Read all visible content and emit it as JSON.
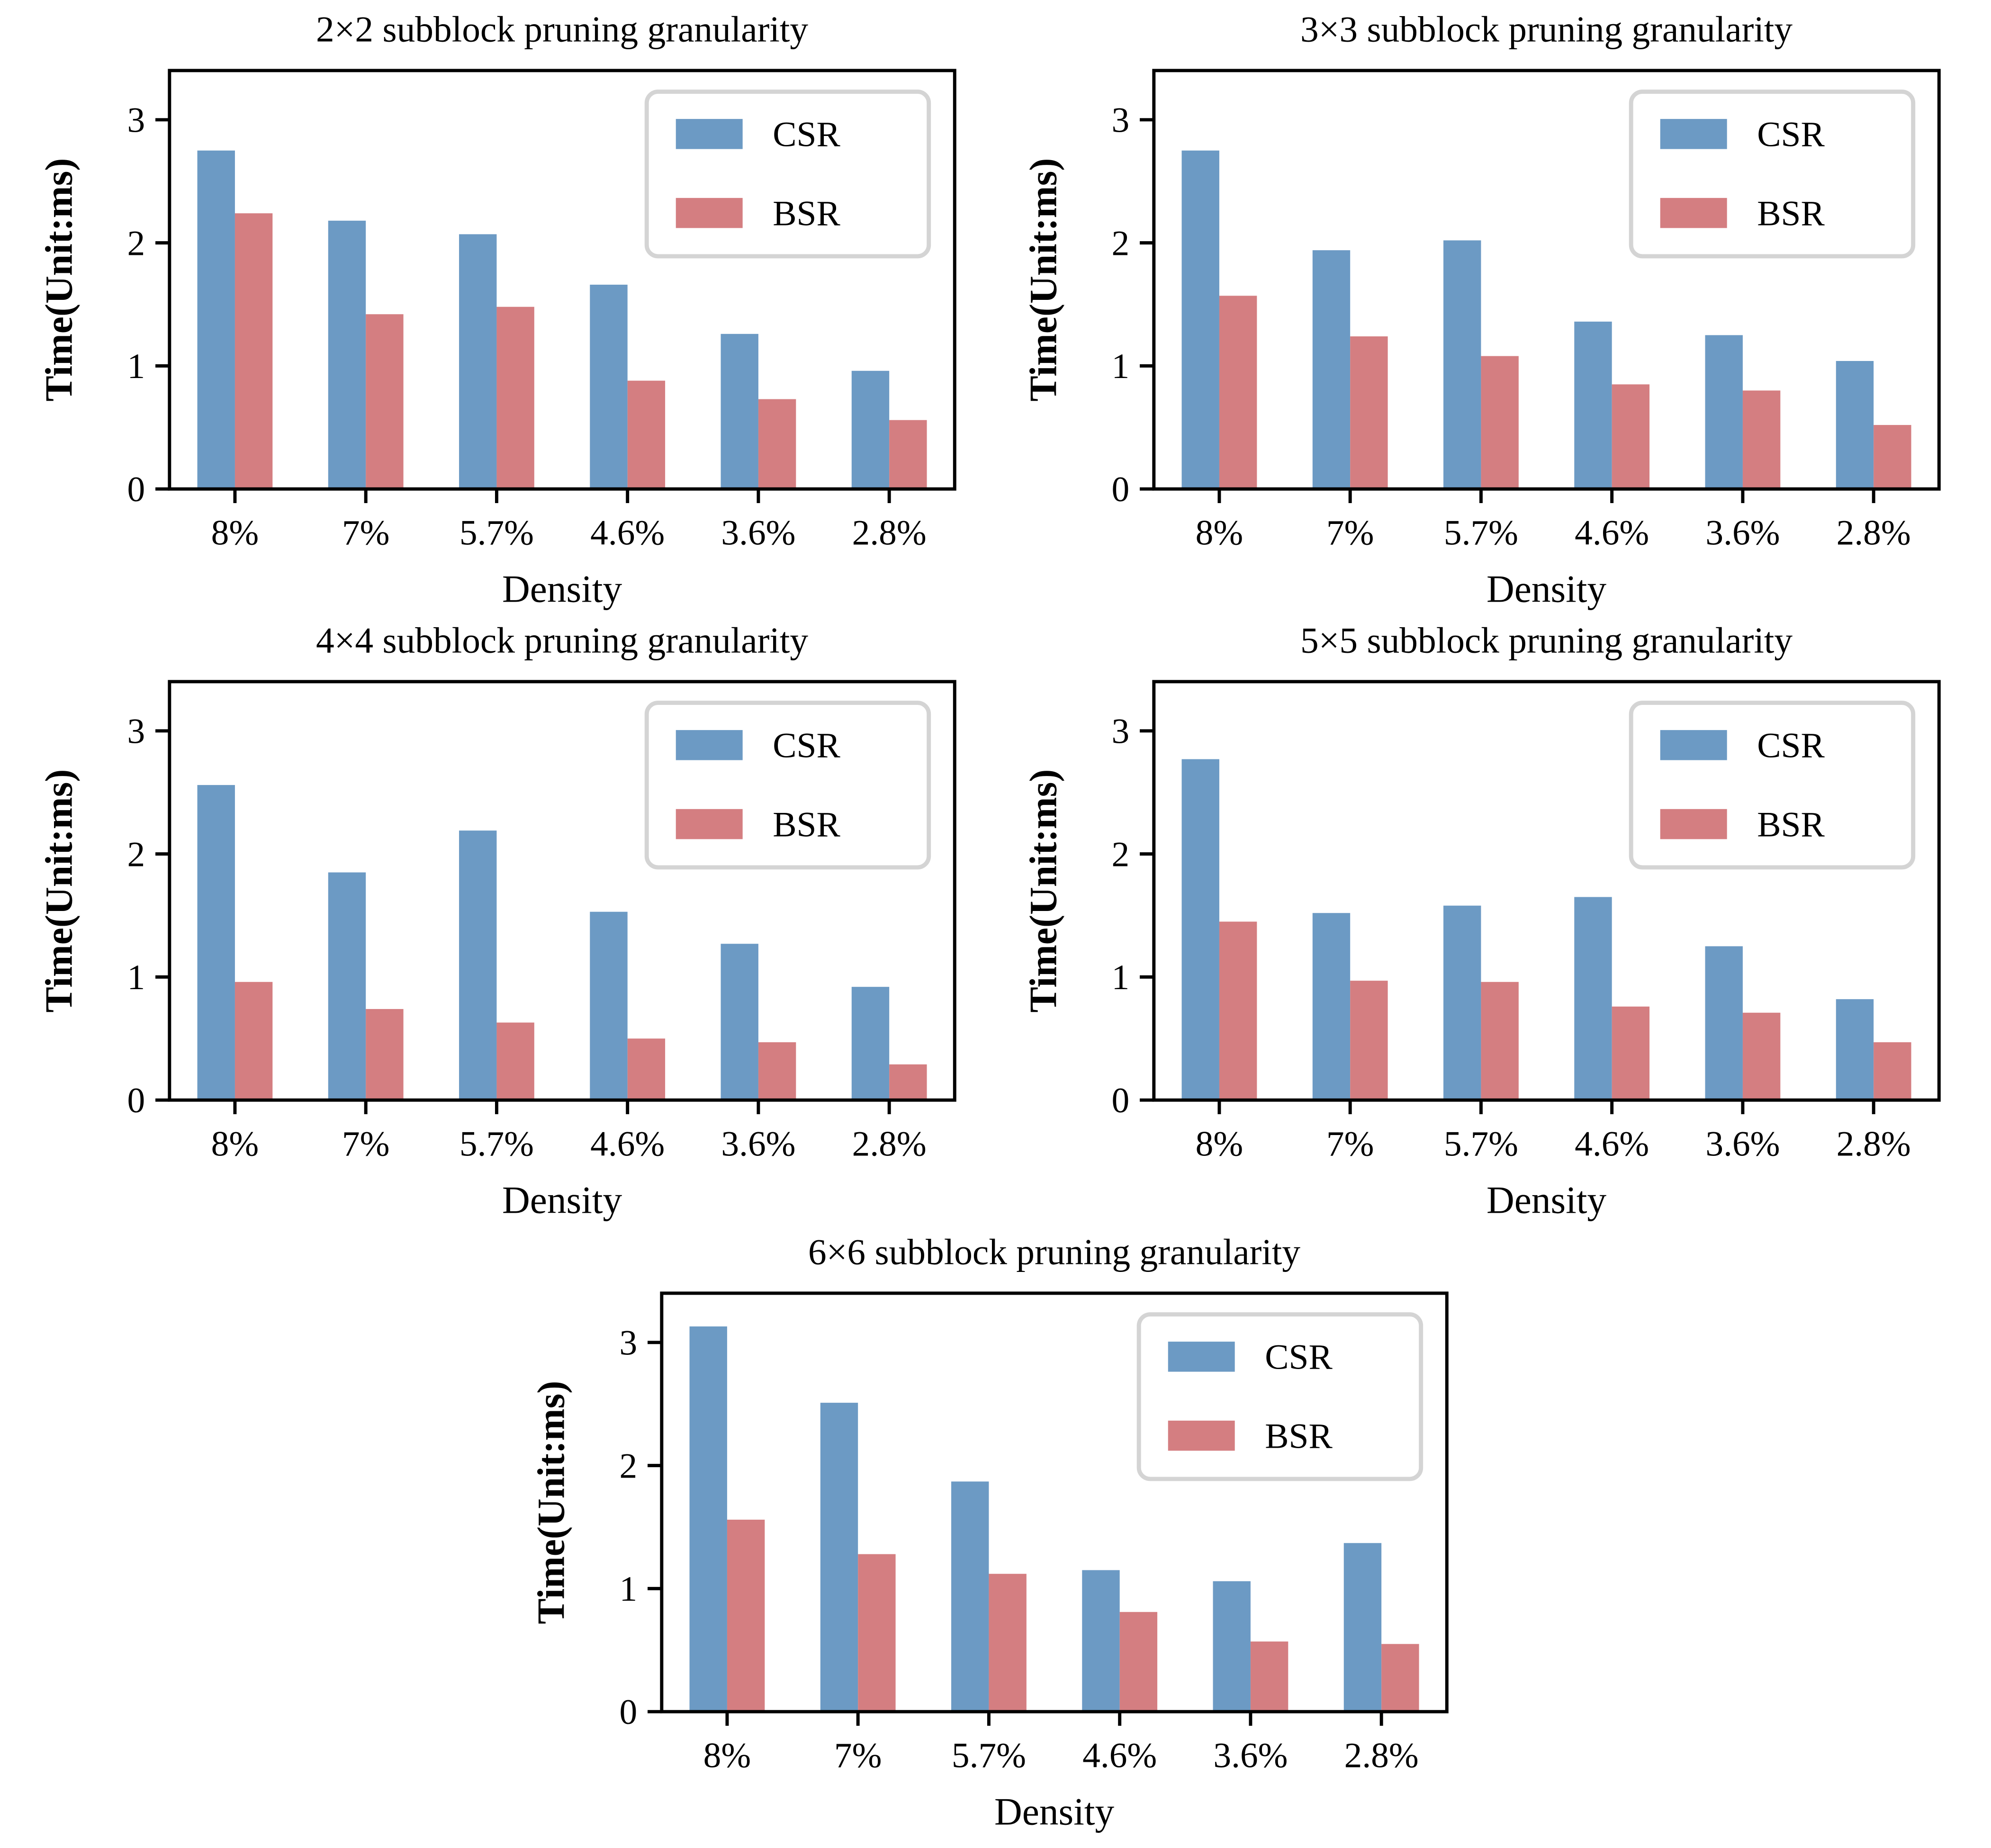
{
  "figure": {
    "background": "#ffffff",
    "description": "Five bar-chart subplots comparing CSR vs BSR sparse-matrix times at different densities and subblock pruning granularities"
  },
  "colors": {
    "csr": "#6c9ac4",
    "bsr": "#d47e81",
    "axis": "#000000",
    "legend_border": "#d4d4d4",
    "legend_background": "#ffffff"
  },
  "legend": {
    "items": [
      "CSR",
      "BSR"
    ],
    "position": "upper right"
  },
  "chart_data": [
    {
      "type": "bar",
      "title": "2×2 subblock pruning granularity",
      "xlabel": "Density",
      "ylabel": "Time(Unit:ms)",
      "categories": [
        "8%",
        "7%",
        "5.7%",
        "4.6%",
        "3.6%",
        "2.8%"
      ],
      "yticks": [
        "0",
        "1",
        "2",
        "3"
      ],
      "ylim": [
        0,
        3.4
      ],
      "grid": false,
      "legend_position": "upper right",
      "series": [
        {
          "name": "CSR",
          "color": "#6c9ac4",
          "values": [
            2.75,
            2.18,
            2.07,
            1.66,
            1.26,
            0.96
          ]
        },
        {
          "name": "BSR",
          "color": "#d47e81",
          "values": [
            2.24,
            1.42,
            1.48,
            0.88,
            0.73,
            0.56
          ]
        }
      ]
    },
    {
      "type": "bar",
      "title": "3×3 subblock pruning granularity",
      "xlabel": "Density",
      "ylabel": "Time(Unit:ms)",
      "categories": [
        "8%",
        "7%",
        "5.7%",
        "4.6%",
        "3.6%",
        "2.8%"
      ],
      "yticks": [
        "0",
        "1",
        "2",
        "3"
      ],
      "ylim": [
        0,
        3.4
      ],
      "grid": false,
      "legend_position": "upper right",
      "series": [
        {
          "name": "CSR",
          "color": "#6c9ac4",
          "values": [
            2.75,
            1.94,
            2.02,
            1.36,
            1.25,
            1.04
          ]
        },
        {
          "name": "BSR",
          "color": "#d47e81",
          "values": [
            1.57,
            1.24,
            1.08,
            0.85,
            0.8,
            0.52
          ]
        }
      ]
    },
    {
      "type": "bar",
      "title": "4×4 subblock pruning granularity",
      "xlabel": "Density",
      "ylabel": "Time(Unit:ms)",
      "categories": [
        "8%",
        "7%",
        "5.7%",
        "4.6%",
        "3.6%",
        "2.8%"
      ],
      "yticks": [
        "0",
        "1",
        "2",
        "3"
      ],
      "ylim": [
        0,
        3.4
      ],
      "grid": false,
      "legend_position": "upper right",
      "series": [
        {
          "name": "CSR",
          "color": "#6c9ac4",
          "values": [
            2.56,
            1.85,
            2.19,
            1.53,
            1.27,
            0.92
          ]
        },
        {
          "name": "BSR",
          "color": "#d47e81",
          "values": [
            0.96,
            0.74,
            0.63,
            0.5,
            0.47,
            0.29
          ]
        }
      ]
    },
    {
      "type": "bar",
      "title": "5×5 subblock pruning granularity",
      "xlabel": "Density",
      "ylabel": "Time(Unit:ms)",
      "categories": [
        "8%",
        "7%",
        "5.7%",
        "4.6%",
        "3.6%",
        "2.8%"
      ],
      "yticks": [
        "0",
        "1",
        "2",
        "3"
      ],
      "ylim": [
        0,
        3.4
      ],
      "grid": false,
      "legend_position": "upper right",
      "series": [
        {
          "name": "CSR",
          "color": "#6c9ac4",
          "values": [
            2.77,
            1.52,
            1.58,
            1.65,
            1.25,
            0.82
          ]
        },
        {
          "name": "BSR",
          "color": "#d47e81",
          "values": [
            1.45,
            0.97,
            0.96,
            0.76,
            0.71,
            0.47
          ]
        }
      ]
    },
    {
      "type": "bar",
      "title": "6×6 subblock pruning granularity",
      "xlabel": "Density",
      "ylabel": "Time(Unit:ms)",
      "categories": [
        "8%",
        "7%",
        "5.7%",
        "4.6%",
        "3.6%",
        "2.8%"
      ],
      "yticks": [
        "0",
        "1",
        "2",
        "3"
      ],
      "ylim": [
        0,
        3.4
      ],
      "grid": false,
      "legend_position": "upper right",
      "series": [
        {
          "name": "CSR",
          "color": "#6c9ac4",
          "values": [
            3.13,
            2.51,
            1.87,
            1.15,
            1.06,
            1.37
          ]
        },
        {
          "name": "BSR",
          "color": "#d47e81",
          "values": [
            1.56,
            1.28,
            1.12,
            0.81,
            0.57,
            0.55
          ]
        }
      ]
    }
  ]
}
